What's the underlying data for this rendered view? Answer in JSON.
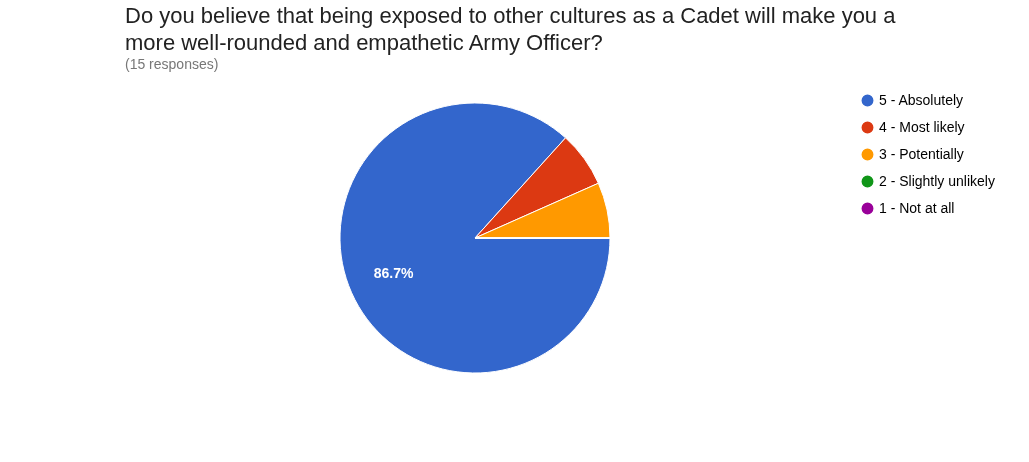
{
  "chart_data": {
    "type": "pie",
    "title": "Do you believe that being exposed to other cultures as a Cadet will make you a more well-rounded and empathetic Army Officer?",
    "subtitle": "(15 responses)",
    "categories": [
      "5 - Absolutely",
      "4 - Most likely",
      "3 - Potentially",
      "2 - Slightly unlikely",
      "1 - Not at all"
    ],
    "values": [
      86.7,
      6.65,
      6.65,
      0,
      0
    ],
    "colors": [
      "#3366cc",
      "#dc3912",
      "#ff9900",
      "#109618",
      "#990099"
    ],
    "value_labels": [
      "86.7%",
      null,
      null,
      null,
      null
    ],
    "legend": "right"
  }
}
